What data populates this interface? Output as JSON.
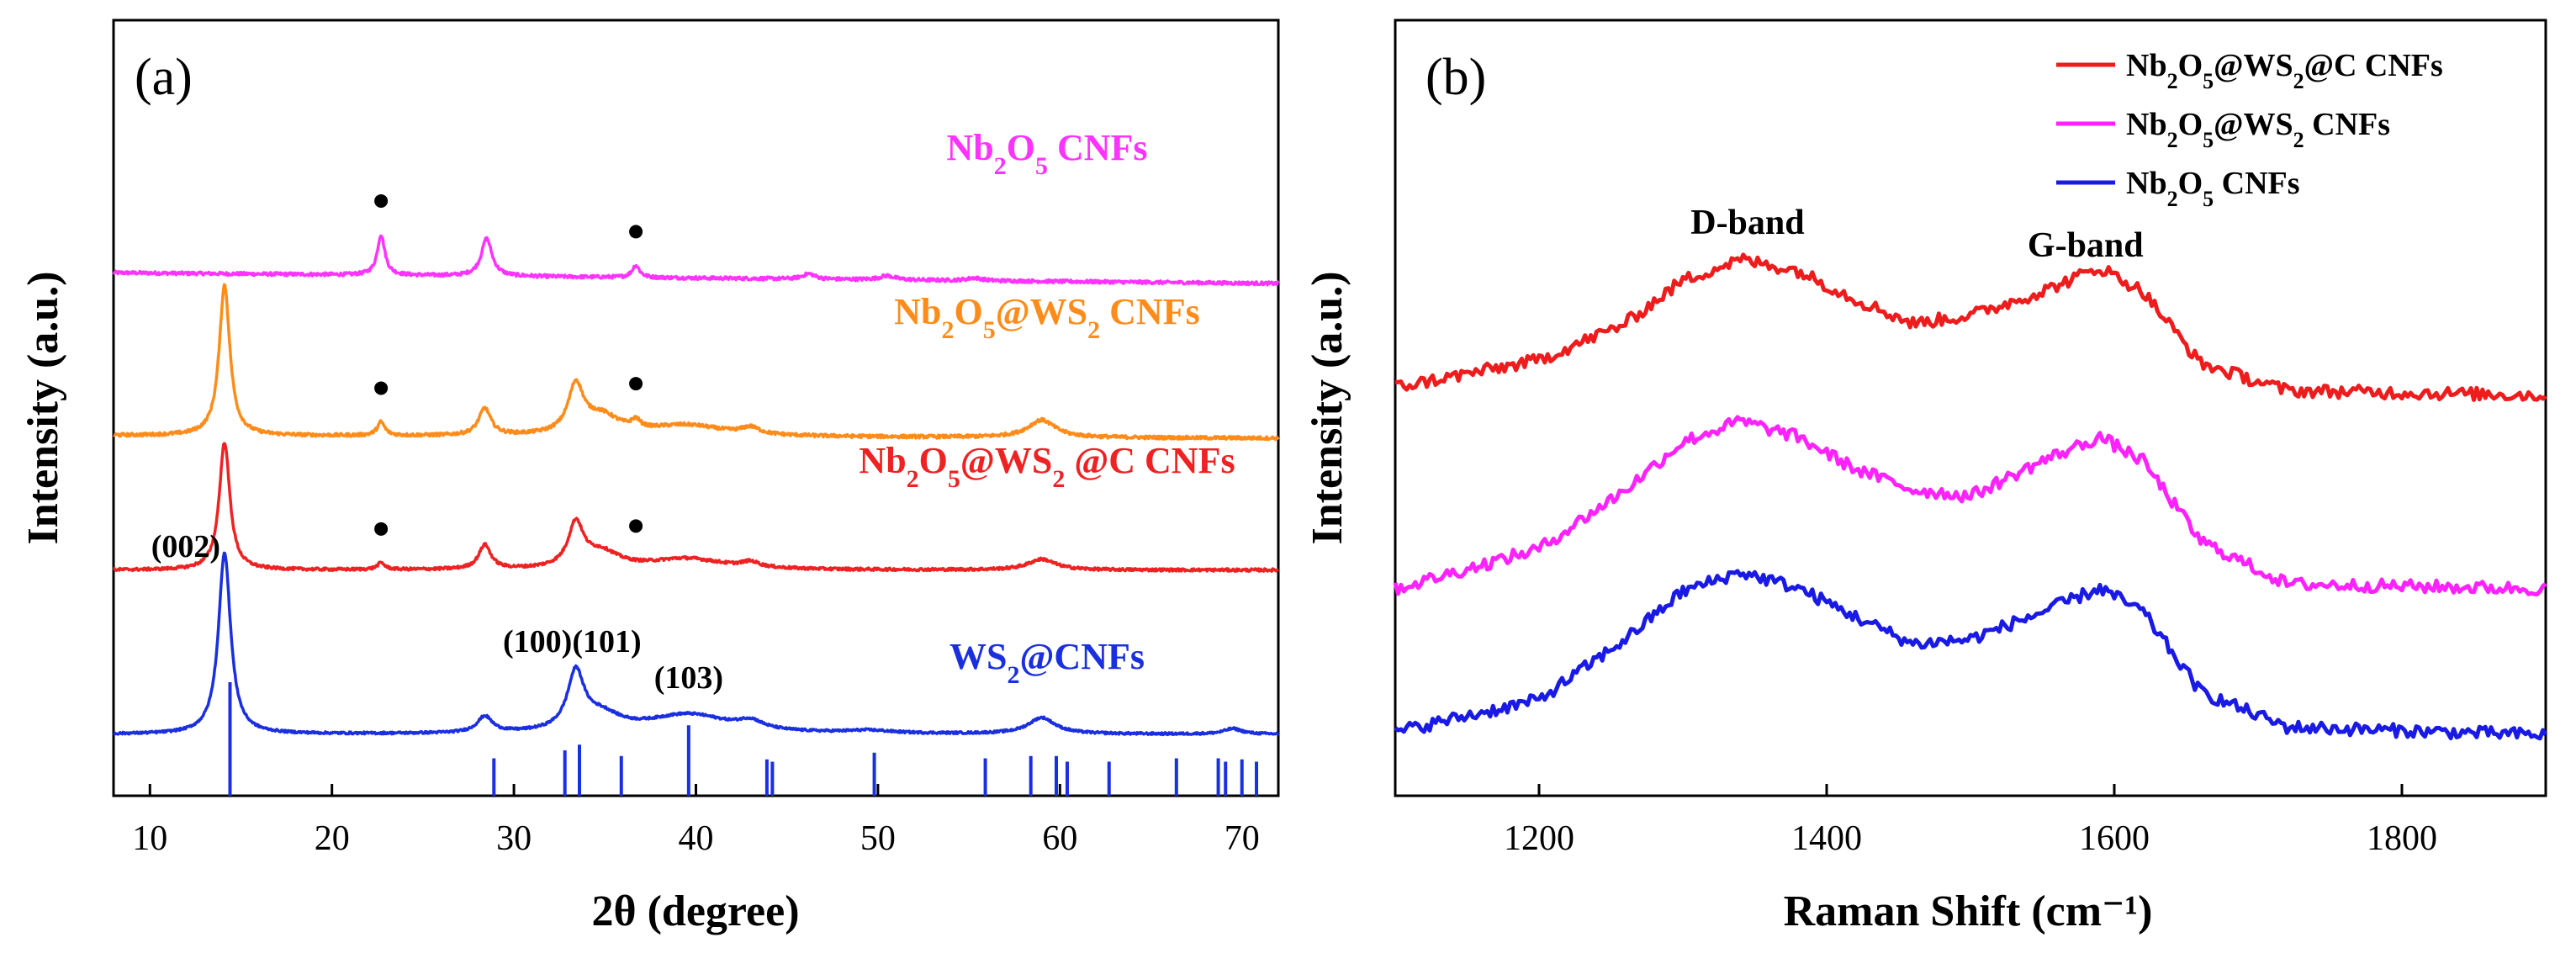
{
  "chart_data": [
    {
      "id": "a",
      "type": "line",
      "panel_label": "(a)",
      "xlabel": "2θ (degree)",
      "ylabel": "Intensity (a.u.)",
      "xlim": [
        8,
        72
      ],
      "xticks": [
        10,
        20,
        30,
        40,
        50,
        60,
        70
      ],
      "baseline_dots_marker": "●",
      "series": [
        {
          "name": "Nb2O5 CNFs",
          "label_parts": [
            [
              "Nb",
              ""
            ],
            [
              "2",
              "sub"
            ],
            [
              "O",
              ""
            ],
            [
              "5",
              "sub"
            ],
            [
              " CNFs",
              ""
            ]
          ],
          "color": "#ff33ff",
          "offset": 3.35,
          "noise": 0.012,
          "baseline": [
            [
              8,
              0.08
            ],
            [
              72,
              0.0
            ]
          ],
          "peaks": [
            [
              22.7,
              0.3,
              0.25
            ],
            [
              28.5,
              0.28,
              0.35
            ],
            [
              36.7,
              0.09,
              0.25
            ],
            [
              46.2,
              0.04,
              0.4
            ],
            [
              50.5,
              0.03,
              0.5
            ],
            [
              55.3,
              0.02,
              0.5
            ]
          ],
          "dots": [
            22.7,
            36.7
          ]
        },
        {
          "name": "Nb2O5@WS2 CNFs",
          "label_parts": [
            [
              "Nb",
              ""
            ],
            [
              "2",
              "sub"
            ],
            [
              "O",
              ""
            ],
            [
              "5",
              "sub"
            ],
            [
              "@WS",
              ""
            ],
            [
              "2",
              "sub"
            ],
            [
              " CNFs",
              ""
            ]
          ],
          "color": "#ff8c1a",
          "offset": 2.2,
          "noise": 0.012,
          "baseline": [
            [
              8,
              0.02
            ],
            [
              72,
              0.0
            ]
          ],
          "peaks": [
            [
              14.1,
              1.12,
              0.35
            ],
            [
              22.7,
              0.1,
              0.25
            ],
            [
              28.4,
              0.2,
              0.4
            ],
            [
              33.4,
              0.35,
              0.5
            ],
            [
              36.7,
              0.06,
              0.3
            ],
            [
              34.8,
              0.14,
              1.2
            ],
            [
              39.5,
              0.08,
              2.5
            ],
            [
              43.0,
              0.05,
              0.6
            ],
            [
              59.0,
              0.13,
              0.9
            ]
          ],
          "dots": [
            22.7,
            36.7
          ]
        },
        {
          "name": "Nb2O5@WS2 @C CNFs",
          "label_parts": [
            [
              "Nb",
              ""
            ],
            [
              "2",
              "sub"
            ],
            [
              "O",
              ""
            ],
            [
              "5",
              "sub"
            ],
            [
              "@WS",
              ""
            ],
            [
              "2",
              "sub"
            ],
            [
              " @C CNFs",
              ""
            ]
          ],
          "color": "#ee2222",
          "offset": 1.22,
          "noise": 0.01,
          "baseline": [
            [
              8,
              0.0
            ],
            [
              72,
              0.0
            ]
          ],
          "peaks": [
            [
              14.1,
              0.95,
              0.35
            ],
            [
              22.7,
              0.05,
              0.25
            ],
            [
              28.4,
              0.18,
              0.4
            ],
            [
              33.4,
              0.32,
              0.5
            ],
            [
              34.8,
              0.12,
              1.2
            ],
            [
              39.5,
              0.08,
              2.5
            ],
            [
              43.0,
              0.04,
              0.6
            ],
            [
              59.0,
              0.08,
              0.9
            ]
          ],
          "dots": [
            22.7,
            36.7
          ]
        },
        {
          "name": "WS2@CNFs",
          "label_parts": [
            [
              "WS",
              ""
            ],
            [
              "2",
              "sub"
            ],
            [
              "@CNFs",
              ""
            ]
          ],
          "color": "#1a2fe0",
          "offset": 0.0,
          "noise": 0.008,
          "baseline": [
            [
              8,
              0.0
            ],
            [
              72,
              0.0
            ]
          ],
          "peaks": [
            [
              14.1,
              1.35,
              0.4
            ],
            [
              28.4,
              0.12,
              0.5
            ],
            [
              33.4,
              0.42,
              0.55
            ],
            [
              34.8,
              0.12,
              1.3
            ],
            [
              39.6,
              0.14,
              2.8
            ],
            [
              43.0,
              0.06,
              0.8
            ],
            [
              49.5,
              0.02,
              1.5
            ],
            [
              59.0,
              0.12,
              0.9
            ],
            [
              69.5,
              0.04,
              0.6
            ]
          ],
          "dots": []
        }
      ],
      "annotations": [
        {
          "text": "(002)",
          "x": 14.1,
          "side": "left"
        },
        {
          "text": "(100)(101)",
          "x": 33.2,
          "side": "center"
        },
        {
          "text": "(103)",
          "x": 39.6,
          "side": "center"
        }
      ],
      "reference_lines": {
        "color": "#1a2fe0",
        "positions": [
          14.4,
          28.9,
          32.8,
          33.6,
          35.9,
          39.6,
          43.9,
          44.2,
          49.8,
          55.9,
          58.4,
          59.8,
          60.4,
          62.7,
          66.4,
          68.7,
          69.1,
          70.0,
          70.8
        ],
        "heights": [
          1.0,
          0.33,
          0.4,
          0.45,
          0.35,
          0.62,
          0.32,
          0.3,
          0.38,
          0.33,
          0.35,
          0.35,
          0.3,
          0.3,
          0.33,
          0.33,
          0.3,
          0.32,
          0.3
        ]
      }
    },
    {
      "id": "b",
      "type": "line",
      "panel_label": "(b)",
      "xlabel": "Raman Shift (cm⁻¹)",
      "ylabel": "Intensity (a.u.)",
      "xlim": [
        1100,
        1900
      ],
      "xticks": [
        1200,
        1400,
        1600,
        1800
      ],
      "annotations": [
        {
          "text": "D-band",
          "x": 1345
        },
        {
          "text": "G-band",
          "x": 1580
        }
      ],
      "legend_position": "top-right",
      "series": [
        {
          "name": "Nb2O5@WS2@C CNFs",
          "label_parts": [
            [
              "Nb",
              ""
            ],
            [
              "2",
              "sub"
            ],
            [
              "O",
              ""
            ],
            [
              "5",
              "sub"
            ],
            [
              "@WS",
              ""
            ],
            [
              "2",
              "sub"
            ],
            [
              "@C CNFs",
              ""
            ]
          ],
          "color": "#ee1c1c",
          "offset": 2.0,
          "noise": 0.04,
          "points": [
            [
              1100,
              0.05
            ],
            [
              1200,
              0.22
            ],
            [
              1260,
              0.45
            ],
            [
              1300,
              0.72
            ],
            [
              1340,
              0.85
            ],
            [
              1380,
              0.78
            ],
            [
              1420,
              0.6
            ],
            [
              1460,
              0.45
            ],
            [
              1500,
              0.5
            ],
            [
              1550,
              0.65
            ],
            [
              1590,
              0.8
            ],
            [
              1620,
              0.65
            ],
            [
              1660,
              0.2
            ],
            [
              1720,
              0.03
            ],
            [
              1900,
              0.0
            ]
          ]
        },
        {
          "name": "Nb2O5@WS2 CNFs",
          "label_parts": [
            [
              "Nb",
              ""
            ],
            [
              "2",
              "sub"
            ],
            [
              "O",
              ""
            ],
            [
              "5",
              "sub"
            ],
            [
              "@WS",
              ""
            ],
            [
              "2",
              "sub"
            ],
            [
              " CNFs",
              ""
            ]
          ],
          "color": "#ff22ff",
          "offset": 1.0,
          "noise": 0.04,
          "points": [
            [
              1100,
              0.0
            ],
            [
              1200,
              0.25
            ],
            [
              1260,
              0.62
            ],
            [
              1300,
              0.92
            ],
            [
              1340,
              1.05
            ],
            [
              1380,
              0.95
            ],
            [
              1420,
              0.75
            ],
            [
              1460,
              0.62
            ],
            [
              1500,
              0.58
            ],
            [
              1550,
              0.8
            ],
            [
              1590,
              0.95
            ],
            [
              1620,
              0.8
            ],
            [
              1660,
              0.3
            ],
            [
              1720,
              0.03
            ],
            [
              1900,
              0.0
            ]
          ]
        },
        {
          "name": "Nb2O5 CNFs",
          "label_parts": [
            [
              "Nb",
              ""
            ],
            [
              "2",
              "sub"
            ],
            [
              "O",
              ""
            ],
            [
              "5",
              "sub"
            ],
            [
              " CNFs",
              ""
            ]
          ],
          "color": "#1a1ae6",
          "offset": 0.0,
          "noise": 0.04,
          "points": [
            [
              1100,
              0.0
            ],
            [
              1200,
              0.2
            ],
            [
              1260,
              0.58
            ],
            [
              1300,
              0.88
            ],
            [
              1340,
              1.0
            ],
            [
              1380,
              0.9
            ],
            [
              1420,
              0.72
            ],
            [
              1460,
              0.55
            ],
            [
              1500,
              0.58
            ],
            [
              1550,
              0.75
            ],
            [
              1590,
              0.9
            ],
            [
              1620,
              0.75
            ],
            [
              1660,
              0.25
            ],
            [
              1720,
              0.03
            ],
            [
              1900,
              -0.02
            ]
          ]
        }
      ]
    }
  ]
}
